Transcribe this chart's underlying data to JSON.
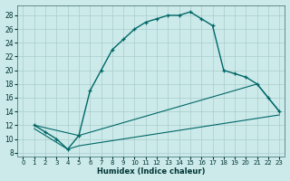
{
  "xlabel": "Humidex (Indice chaleur)",
  "background_color": "#cceaea",
  "grid_color": "#aacccc",
  "line_color": "#006666",
  "xlim": [
    -0.5,
    23.5
  ],
  "ylim": [
    7.5,
    29.5
  ],
  "xticks": [
    0,
    1,
    2,
    3,
    4,
    5,
    6,
    7,
    8,
    9,
    10,
    11,
    12,
    13,
    14,
    15,
    16,
    17,
    18,
    19,
    20,
    21,
    22,
    23
  ],
  "yticks": [
    8,
    10,
    12,
    14,
    16,
    18,
    20,
    22,
    24,
    26,
    28
  ],
  "line1_x": [
    1,
    2,
    3,
    4,
    5,
    6,
    7,
    8,
    9,
    10,
    11,
    12,
    13,
    14,
    15,
    16,
    17,
    18,
    19,
    20,
    21,
    22,
    23
  ],
  "line1_y": [
    12,
    11,
    10,
    8.5,
    10.5,
    17,
    20,
    23,
    24.5,
    26,
    27,
    27.5,
    28,
    28,
    28.5,
    27.5,
    26.5,
    20,
    19.5,
    19,
    18,
    16,
    14
  ],
  "line2_x": [
    1,
    5,
    21,
    23
  ],
  "line2_y": [
    12,
    10.5,
    18,
    14
  ],
  "line3_x": [
    1,
    4,
    5,
    21,
    23
  ],
  "line3_y": [
    11.5,
    8.5,
    9,
    13,
    13.5
  ],
  "marker": "+"
}
